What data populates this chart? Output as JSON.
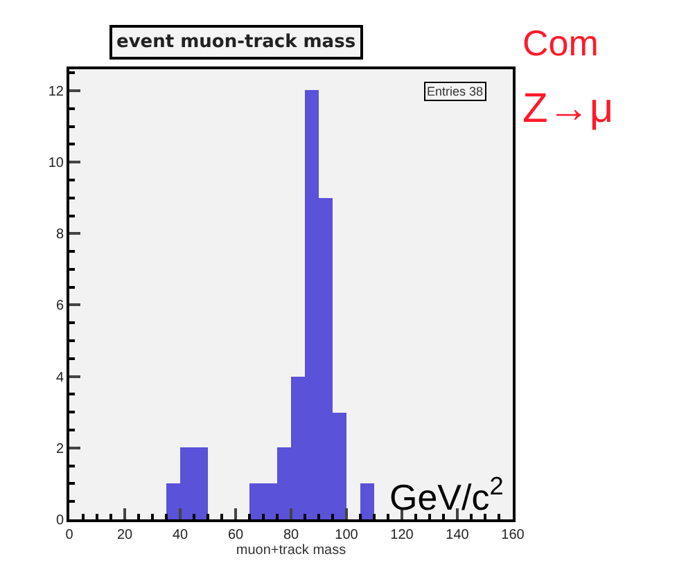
{
  "chart_data": {
    "type": "histogram",
    "title": "event muon-track mass",
    "xlabel": "muon+track mass",
    "bins": [
      0,
      5,
      10,
      15,
      20,
      25,
      30,
      35,
      40,
      45,
      50,
      55,
      60,
      65,
      70,
      75,
      80,
      85,
      90,
      95,
      100,
      105,
      110,
      115,
      120,
      125,
      130,
      135,
      140,
      145,
      150,
      155,
      160
    ],
    "values": [
      0,
      0,
      0,
      0,
      0,
      0,
      0,
      1,
      2,
      2,
      0,
      0,
      0,
      1,
      1,
      2,
      4,
      12,
      9,
      3,
      0,
      1,
      0,
      0,
      0,
      0,
      0,
      0,
      0,
      0,
      0,
      0
    ],
    "color": "#5a52d8",
    "xlim": [
      0,
      160
    ],
    "xticks": [
      0,
      20,
      40,
      60,
      80,
      100,
      120,
      140,
      160
    ],
    "ylim": [
      0,
      12.6
    ],
    "yticks": [
      0,
      2,
      4,
      6,
      8,
      10,
      12
    ],
    "grid": false,
    "annotations": [
      "Entries 38",
      "Com",
      "Z→μ",
      "GeV/c$^{2}$"
    ]
  }
}
